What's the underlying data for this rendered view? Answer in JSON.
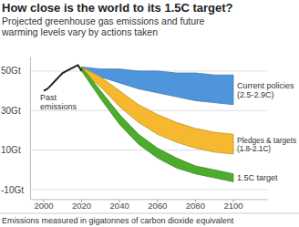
{
  "chart_data": {
    "type": "area",
    "title": "How close is the world to its 1.5C target?",
    "subtitle": "Projected greenhouse gas emissions and future warming levels vary by actions taken",
    "footnote": "Emissions measured in gigatonnes of carbon dioxide equivalent",
    "xlim": [
      1993,
      2118
    ],
    "xticks": [
      2000,
      2020,
      2040,
      2060,
      2080,
      2100
    ],
    "ylim": [
      -15,
      57
    ],
    "yticks": [
      {
        "value": -10,
        "label": "-10Gt"
      },
      {
        "value": 10,
        "label": "10Gt"
      },
      {
        "value": 30,
        "label": "30Gt"
      },
      {
        "value": 50,
        "label": "50Gt"
      }
    ],
    "grid": true,
    "series": [
      {
        "name": "Current policies (2.5-2.9C)",
        "type": "area",
        "color": "#4f95dc",
        "x": [
          2020,
          2030,
          2040,
          2050,
          2060,
          2070,
          2080,
          2090,
          2100
        ],
        "values": [
          52,
          51,
          51,
          50,
          50,
          49,
          49,
          48,
          48
        ],
        "low": [
          50,
          47,
          44,
          41,
          39,
          37,
          35,
          34,
          33
        ]
      },
      {
        "name": "Pledges & targets (1.8-2.1C)",
        "type": "area",
        "color": "#f5b82e",
        "x": [
          2020,
          2030,
          2040,
          2050,
          2060,
          2070,
          2080,
          2090,
          2100
        ],
        "values": [
          52,
          47,
          40,
          33,
          28,
          24,
          21,
          19,
          18
        ],
        "low": [
          50,
          42,
          32,
          24,
          18,
          14,
          11,
          9,
          8
        ]
      },
      {
        "name": "1.5C target",
        "type": "area",
        "color": "#4cad2c",
        "x": [
          2020,
          2030,
          2040,
          2050,
          2060,
          2070,
          2080,
          2090,
          2100
        ],
        "values": [
          52,
          40,
          28,
          18,
          11,
          6,
          2,
          0,
          -2
        ],
        "low": [
          50,
          36,
          23,
          13,
          6,
          1,
          -2,
          -4,
          -6
        ]
      },
      {
        "name": "Past emissions",
        "type": "line",
        "color": "#222222",
        "x": [
          2000,
          2002,
          2004,
          2006,
          2008,
          2010,
          2012,
          2014,
          2016,
          2018,
          2020
        ],
        "values": [
          40,
          41,
          43,
          45,
          47,
          49,
          50,
          51,
          52,
          53,
          50
        ]
      }
    ]
  }
}
